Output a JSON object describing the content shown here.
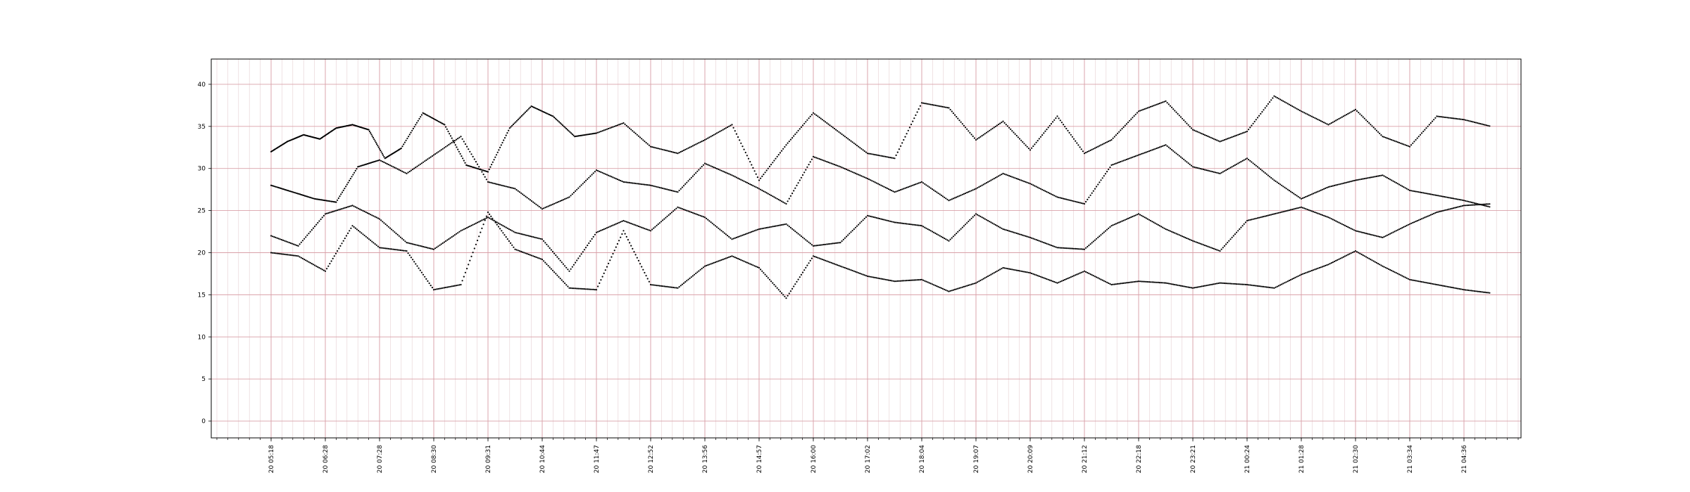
{
  "chart_data": {
    "type": "scatter",
    "title": "",
    "xlabel": "",
    "ylabel": "",
    "ylim": [
      -2,
      43
    ],
    "y_ticks": [
      0,
      5,
      10,
      15,
      20,
      25,
      30,
      35,
      40
    ],
    "x_ticks": [
      "20 05:18",
      "20 06:28",
      "20 07:28",
      "20 08:30",
      "20 09:31",
      "20 10:44",
      "20 11:47",
      "20 12:52",
      "20 13:56",
      "20 14:57",
      "20 16:00",
      "20 17:02",
      "20 18:04",
      "20 19:07",
      "20 20:09",
      "20 21:12",
      "20 22:18",
      "20 23:21",
      "21 00:24",
      "21 01:28",
      "21 02:30",
      "21 03:34",
      "21 04:36"
    ],
    "grid": true,
    "grid_color": "#d9a0a8",
    "point_color": "#000000",
    "series": [
      {
        "x": [
          0.0,
          0.3,
          0.6,
          0.9,
          1.2,
          1.5,
          1.8,
          2.1,
          2.4,
          2.8,
          3.2,
          3.6,
          4.0,
          4.4,
          4.8,
          5.2,
          5.6,
          6.0,
          6.5,
          7.0,
          7.5,
          8.0,
          8.5,
          9.0,
          9.5,
          10.0,
          10.5,
          11.0,
          11.5,
          12.0,
          12.5,
          13.0,
          13.5,
          14.0,
          14.5,
          15.0,
          15.5,
          16.0,
          16.5,
          17.0,
          17.5,
          18.0,
          18.5,
          19.0,
          19.5,
          20.0,
          20.5,
          21.0,
          21.5,
          22.0,
          22.5
        ],
        "y": [
          32.0,
          33.2,
          34.0,
          33.5,
          34.8,
          35.2,
          34.6,
          31.2,
          32.4,
          36.6,
          35.2,
          30.4,
          29.6,
          34.8,
          37.4,
          36.2,
          33.8,
          34.2,
          35.4,
          32.6,
          31.8,
          33.4,
          35.2,
          28.6,
          32.8,
          36.6,
          34.2,
          31.8,
          31.2,
          37.8,
          37.2,
          33.4,
          35.6,
          32.2,
          36.2,
          31.8,
          33.4,
          36.8,
          38.0,
          34.6,
          33.2,
          34.4,
          38.6,
          36.8,
          35.2,
          37.0,
          33.8,
          32.6,
          36.2,
          35.8,
          35.0
        ]
      },
      {
        "x": [
          0.0,
          0.4,
          0.8,
          1.2,
          1.6,
          2.0,
          2.5,
          3.0,
          3.5,
          4.0,
          4.5,
          5.0,
          5.5,
          6.0,
          6.5,
          7.0,
          7.5,
          8.0,
          8.5,
          9.0,
          9.5,
          10.0,
          10.5,
          11.0,
          11.5,
          12.0,
          12.5,
          13.0,
          13.5,
          14.0,
          14.5,
          15.0,
          15.5,
          16.0,
          16.5,
          17.0,
          17.5,
          18.0,
          18.5,
          19.0,
          19.5,
          20.0,
          20.5,
          21.0,
          21.5,
          22.0,
          22.5
        ],
        "y": [
          28.0,
          27.2,
          26.4,
          26.0,
          30.2,
          31.0,
          29.4,
          31.6,
          33.8,
          28.4,
          27.6,
          25.2,
          26.6,
          29.8,
          28.4,
          28.0,
          27.2,
          30.6,
          29.2,
          27.6,
          25.8,
          31.4,
          30.2,
          28.8,
          27.2,
          28.4,
          26.2,
          27.6,
          29.4,
          28.2,
          26.6,
          25.8,
          30.4,
          31.6,
          32.8,
          30.2,
          29.4,
          31.2,
          28.6,
          26.4,
          27.8,
          28.6,
          29.2,
          27.4,
          26.8,
          26.2,
          25.4
        ]
      },
      {
        "x": [
          0.0,
          0.5,
          1.0,
          1.5,
          2.0,
          2.5,
          3.0,
          3.5,
          4.0,
          4.5,
          5.0,
          5.5,
          6.0,
          6.5,
          7.0,
          7.5,
          8.0,
          8.5,
          9.0,
          9.5,
          10.0,
          10.5,
          11.0,
          11.5,
          12.0,
          12.5,
          13.0,
          13.5,
          14.0,
          14.5,
          15.0,
          15.5,
          16.0,
          16.5,
          17.0,
          17.5,
          18.0,
          18.5,
          19.0,
          19.5,
          20.0,
          20.5,
          21.0,
          21.5,
          22.0,
          22.5
        ],
        "y": [
          22.0,
          20.8,
          24.6,
          25.6,
          24.0,
          21.2,
          20.4,
          22.6,
          24.2,
          22.4,
          21.6,
          17.8,
          22.4,
          23.8,
          22.6,
          25.4,
          24.2,
          21.6,
          22.8,
          23.4,
          20.8,
          21.2,
          24.4,
          23.6,
          23.2,
          21.4,
          24.6,
          22.8,
          21.8,
          20.6,
          20.4,
          23.2,
          24.6,
          22.8,
          21.4,
          20.2,
          23.8,
          24.6,
          25.4,
          24.2,
          22.6,
          21.8,
          23.4,
          24.8,
          25.6,
          25.8
        ]
      },
      {
        "x": [
          0.0,
          0.5,
          1.0,
          1.5,
          2.0,
          2.5,
          3.0,
          3.5,
          4.0,
          4.5,
          5.0,
          5.5,
          6.0,
          6.5,
          7.0,
          7.5,
          8.0,
          8.5,
          9.0,
          9.5,
          10.0,
          10.5,
          11.0,
          11.5,
          12.0,
          12.5,
          13.0,
          13.5,
          14.0,
          14.5,
          15.0,
          15.5,
          16.0,
          16.5,
          17.0,
          17.5,
          18.0,
          18.5,
          19.0,
          19.5,
          20.0,
          20.5,
          21.0,
          21.5,
          22.0,
          22.5
        ],
        "y": [
          20.0,
          19.6,
          17.8,
          23.2,
          20.6,
          20.2,
          15.6,
          16.2,
          24.8,
          20.4,
          19.2,
          15.8,
          15.6,
          22.6,
          16.2,
          15.8,
          18.4,
          19.6,
          18.2,
          14.6,
          19.6,
          18.4,
          17.2,
          16.6,
          16.8,
          15.4,
          16.4,
          18.2,
          17.6,
          16.4,
          17.8,
          16.2,
          16.6,
          16.4,
          15.8,
          16.4,
          16.2,
          15.8,
          17.4,
          18.6,
          20.2,
          18.4,
          16.8,
          16.2,
          15.6,
          15.2
        ]
      }
    ]
  }
}
